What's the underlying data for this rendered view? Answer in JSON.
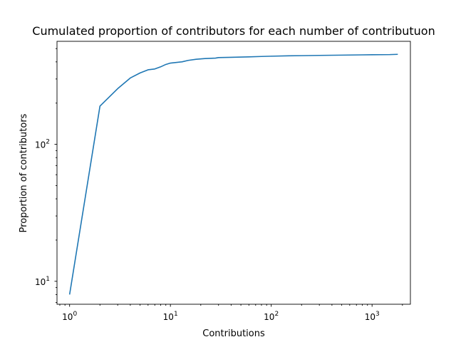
{
  "chart_data": {
    "type": "line",
    "title": "Cumulated proportion of contributors for each number of contributuon",
    "xlabel": "Contributions",
    "ylabel": "Proportion of contributors",
    "xscale": "log",
    "yscale": "log",
    "xlim": [
      0.75,
      2400
    ],
    "ylim": [
      6.8,
      565
    ],
    "grid": false,
    "x_ticks": [
      {
        "base": "10",
        "exp": "0",
        "value": 1
      },
      {
        "base": "10",
        "exp": "1",
        "value": 10
      },
      {
        "base": "10",
        "exp": "2",
        "value": 100
      },
      {
        "base": "10",
        "exp": "3",
        "value": 1000
      }
    ],
    "y_ticks": [
      {
        "base": "10",
        "exp": "1",
        "value": 10
      },
      {
        "base": "10",
        "exp": "2",
        "value": 100
      }
    ],
    "series": [
      {
        "color": "#1f77b4",
        "x": [
          1,
          2,
          3,
          4,
          5,
          6,
          7,
          8,
          9,
          10,
          13,
          15,
          18,
          22,
          28,
          30,
          40,
          60,
          80,
          100,
          150,
          200,
          300,
          500,
          800,
          1000,
          1500,
          1800
        ],
        "y": [
          8,
          190,
          255,
          305,
          332,
          350,
          355,
          368,
          383,
          392,
          400,
          410,
          418,
          423,
          426,
          430,
          432,
          435,
          438,
          440,
          443,
          444,
          446,
          448,
          450,
          451,
          452,
          454
        ]
      }
    ]
  }
}
